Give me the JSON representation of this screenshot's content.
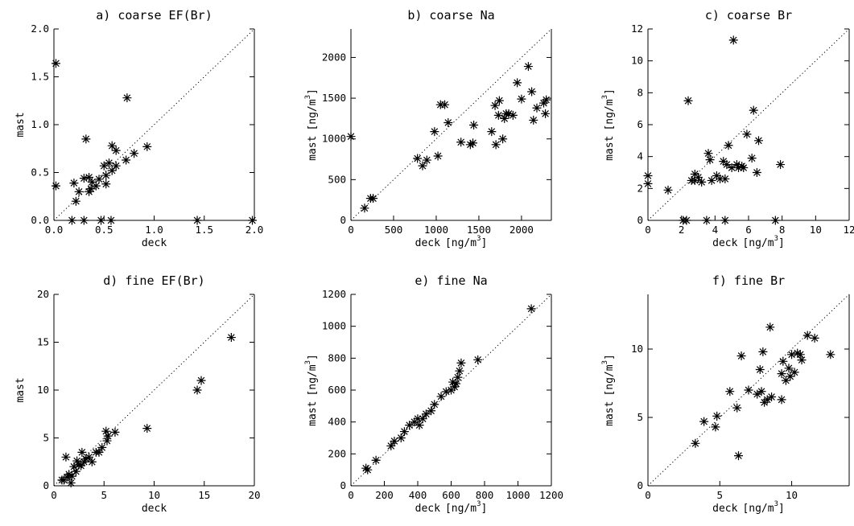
{
  "chart_data": [
    {
      "type": "scatter",
      "title": "a) coarse EF(Br)",
      "xlabel": "deck",
      "ylabel": "mast",
      "xlim": [
        0,
        2.0
      ],
      "ylim": [
        0,
        2.0
      ],
      "xticks": [
        "0.0",
        "0.5",
        "1.0",
        "1.5",
        "2.0"
      ],
      "yticks": [
        "0.0",
        "0.5",
        "1.0",
        "1.5",
        "2.0"
      ],
      "reference_line": "1:1 dotted",
      "points": [
        [
          0.02,
          1.64
        ],
        [
          0.73,
          1.28
        ],
        [
          0.32,
          0.85
        ],
        [
          0.93,
          0.77
        ],
        [
          0.8,
          0.7
        ],
        [
          0.72,
          0.63
        ],
        [
          0.62,
          0.73
        ],
        [
          0.58,
          0.78
        ],
        [
          0.55,
          0.6
        ],
        [
          0.5,
          0.57
        ],
        [
          0.62,
          0.57
        ],
        [
          0.58,
          0.52
        ],
        [
          0.52,
          0.47
        ],
        [
          0.45,
          0.43
        ],
        [
          0.38,
          0.4
        ],
        [
          0.42,
          0.36
        ],
        [
          0.35,
          0.45
        ],
        [
          0.3,
          0.44
        ],
        [
          0.37,
          0.33
        ],
        [
          0.25,
          0.3
        ],
        [
          0.2,
          0.39
        ],
        [
          0.22,
          0.2
        ],
        [
          0.52,
          0.38
        ],
        [
          0.02,
          0.36
        ],
        [
          0.35,
          0.3
        ],
        [
          0.18,
          0.0
        ],
        [
          0.3,
          0.0
        ],
        [
          0.47,
          0.0
        ],
        [
          0.57,
          0.0
        ],
        [
          1.43,
          0.0
        ],
        [
          1.98,
          0.0
        ]
      ]
    },
    {
      "type": "scatter",
      "title": "b) coarse Na",
      "xlabel": "deck",
      "xunit": "[ng/m",
      "ylabel": "mast",
      "yunit": "[ng/m",
      "unit_exponent": "3",
      "unit_close": "]",
      "xlim": [
        0,
        2350
      ],
      "ylim": [
        0,
        2350
      ],
      "xticks": [
        "0",
        "500",
        "1000",
        "1500",
        "2000"
      ],
      "yticks": [
        "0",
        "500",
        "1000",
        "1500",
        "2000"
      ],
      "reference_line": "1:1 dotted",
      "points": [
        [
          0,
          1030
        ],
        [
          160,
          150
        ],
        [
          230,
          270
        ],
        [
          260,
          270
        ],
        [
          780,
          760
        ],
        [
          840,
          670
        ],
        [
          890,
          740
        ],
        [
          1020,
          790
        ],
        [
          980,
          1090
        ],
        [
          1050,
          1420
        ],
        [
          1100,
          1420
        ],
        [
          1140,
          1200
        ],
        [
          1290,
          960
        ],
        [
          1400,
          930
        ],
        [
          1430,
          950
        ],
        [
          1440,
          1170
        ],
        [
          1650,
          1090
        ],
        [
          1690,
          1410
        ],
        [
          1700,
          930
        ],
        [
          1730,
          1290
        ],
        [
          1740,
          1470
        ],
        [
          1780,
          1000
        ],
        [
          1800,
          1250
        ],
        [
          1820,
          1310
        ],
        [
          1850,
          1310
        ],
        [
          1900,
          1290
        ],
        [
          1950,
          1690
        ],
        [
          2000,
          1490
        ],
        [
          2080,
          1890
        ],
        [
          2120,
          1580
        ],
        [
          2140,
          1230
        ],
        [
          2180,
          1380
        ],
        [
          2260,
          1440
        ],
        [
          2280,
          1310
        ],
        [
          2290,
          1480
        ]
      ]
    },
    {
      "type": "scatter",
      "title": "c) coarse Br",
      "xlabel": "deck",
      "xunit": "[ng/m",
      "ylabel": "mast",
      "yunit": "[ng/m",
      "unit_exponent": "3",
      "unit_close": "]",
      "xlim": [
        0,
        12
      ],
      "ylim": [
        0,
        12
      ],
      "xticks": [
        "0",
        "2",
        "4",
        "6",
        "8",
        "10",
        "12"
      ],
      "yticks": [
        "0",
        "2",
        "4",
        "6",
        "8",
        "10",
        "12"
      ],
      "reference_line": "1:1 dotted",
      "points": [
        [
          0.0,
          2.8
        ],
        [
          0.0,
          2.3
        ],
        [
          1.2,
          1.9
        ],
        [
          2.4,
          7.5
        ],
        [
          2.6,
          2.5
        ],
        [
          2.8,
          2.5
        ],
        [
          2.8,
          2.9
        ],
        [
          3.0,
          2.7
        ],
        [
          3.2,
          2.4
        ],
        [
          3.6,
          4.2
        ],
        [
          3.7,
          3.8
        ],
        [
          3.8,
          2.5
        ],
        [
          4.1,
          2.8
        ],
        [
          4.3,
          2.6
        ],
        [
          4.5,
          3.7
        ],
        [
          4.6,
          2.6
        ],
        [
          4.7,
          3.5
        ],
        [
          4.8,
          4.7
        ],
        [
          5.0,
          3.3
        ],
        [
          5.1,
          11.3
        ],
        [
          5.3,
          3.5
        ],
        [
          5.4,
          3.3
        ],
        [
          5.6,
          3.4
        ],
        [
          5.7,
          3.3
        ],
        [
          5.9,
          5.4
        ],
        [
          6.2,
          3.9
        ],
        [
          6.3,
          6.9
        ],
        [
          6.5,
          3.0
        ],
        [
          6.6,
          5.0
        ],
        [
          7.9,
          3.5
        ],
        [
          2.1,
          0.0
        ],
        [
          2.3,
          0.0
        ],
        [
          3.5,
          0.0
        ],
        [
          4.6,
          0.0
        ],
        [
          7.6,
          0.0
        ]
      ]
    },
    {
      "type": "scatter",
      "title": "d) fine EF(Br)",
      "xlabel": "deck",
      "ylabel": "mast",
      "xlim": [
        0,
        20
      ],
      "ylim": [
        0,
        20
      ],
      "xticks": [
        "0",
        "5",
        "10",
        "15",
        "20"
      ],
      "yticks": [
        "0",
        "5",
        "10",
        "15",
        "20"
      ],
      "reference_line": "1:1 dotted",
      "points": [
        [
          17.7,
          15.5
        ],
        [
          14.7,
          11.0
        ],
        [
          14.3,
          10.0
        ],
        [
          9.3,
          6.0
        ],
        [
          6.1,
          5.6
        ],
        [
          5.4,
          5.2
        ],
        [
          5.2,
          5.7
        ],
        [
          5.3,
          4.7
        ],
        [
          4.8,
          4.0
        ],
        [
          4.5,
          3.5
        ],
        [
          4.2,
          3.5
        ],
        [
          3.8,
          2.5
        ],
        [
          3.5,
          3.0
        ],
        [
          3.2,
          2.8
        ],
        [
          3.0,
          2.5
        ],
        [
          2.8,
          3.5
        ],
        [
          2.7,
          2.1
        ],
        [
          2.5,
          2.2
        ],
        [
          2.3,
          2.6
        ],
        [
          2.2,
          1.5
        ],
        [
          2.0,
          2.0
        ],
        [
          1.8,
          1.0
        ],
        [
          1.5,
          1.2
        ],
        [
          1.3,
          0.9
        ],
        [
          1.2,
          3.0
        ],
        [
          1.0,
          0.6
        ],
        [
          0.8,
          0.6
        ],
        [
          1.7,
          0.3
        ]
      ]
    },
    {
      "type": "scatter",
      "title": "e) fine Na",
      "xlabel": "deck",
      "xunit": "[ng/m",
      "ylabel": "mast",
      "yunit": "[ng/m",
      "unit_exponent": "3",
      "unit_close": "]",
      "xlim": [
        0,
        1200
      ],
      "ylim": [
        0,
        1200
      ],
      "xticks": [
        "0",
        "200",
        "400",
        "600",
        "800",
        "1000",
        "1200"
      ],
      "yticks": [
        "0",
        "200",
        "400",
        "600",
        "800",
        "1000",
        "1200"
      ],
      "reference_line": "1:1 dotted",
      "points": [
        [
          90,
          110
        ],
        [
          100,
          100
        ],
        [
          150,
          160
        ],
        [
          240,
          250
        ],
        [
          260,
          280
        ],
        [
          300,
          300
        ],
        [
          320,
          340
        ],
        [
          350,
          380
        ],
        [
          380,
          400
        ],
        [
          400,
          420
        ],
        [
          410,
          380
        ],
        [
          430,
          420
        ],
        [
          450,
          450
        ],
        [
          480,
          470
        ],
        [
          500,
          510
        ],
        [
          540,
          560
        ],
        [
          570,
          590
        ],
        [
          600,
          600
        ],
        [
          610,
          650
        ],
        [
          620,
          620
        ],
        [
          630,
          640
        ],
        [
          640,
          680
        ],
        [
          650,
          720
        ],
        [
          660,
          770
        ],
        [
          760,
          790
        ],
        [
          1080,
          1110
        ]
      ]
    },
    {
      "type": "scatter",
      "title": "f) fine Br",
      "xlabel": "deck",
      "xunit": "[ng/m",
      "ylabel": "mast",
      "yunit": "[ng/m",
      "unit_exponent": "3",
      "unit_close": "]",
      "xlim": [
        0,
        14
      ],
      "ylim": [
        0,
        14
      ],
      "xticks": [
        "0",
        "5",
        "10"
      ],
      "yticks": [
        "0",
        "5",
        "10"
      ],
      "reference_line": "1:1 dotted",
      "points": [
        [
          3.3,
          3.1
        ],
        [
          3.9,
          4.7
        ],
        [
          4.7,
          4.3
        ],
        [
          4.8,
          5.1
        ],
        [
          5.7,
          6.9
        ],
        [
          6.2,
          5.7
        ],
        [
          6.3,
          2.2
        ],
        [
          6.5,
          9.5
        ],
        [
          7.0,
          7.0
        ],
        [
          7.6,
          6.7
        ],
        [
          7.8,
          8.5
        ],
        [
          7.9,
          6.9
        ],
        [
          8.0,
          9.8
        ],
        [
          8.1,
          6.1
        ],
        [
          8.3,
          6.3
        ],
        [
          8.5,
          11.6
        ],
        [
          8.6,
          6.5
        ],
        [
          9.3,
          6.3
        ],
        [
          9.3,
          8.2
        ],
        [
          9.4,
          9.1
        ],
        [
          9.6,
          7.7
        ],
        [
          9.8,
          8.6
        ],
        [
          9.9,
          8.0
        ],
        [
          10.0,
          9.6
        ],
        [
          10.2,
          8.3
        ],
        [
          10.4,
          9.7
        ],
        [
          10.6,
          9.6
        ],
        [
          10.7,
          9.2
        ],
        [
          11.1,
          11.0
        ],
        [
          11.6,
          10.8
        ],
        [
          12.7,
          9.6
        ]
      ]
    }
  ]
}
